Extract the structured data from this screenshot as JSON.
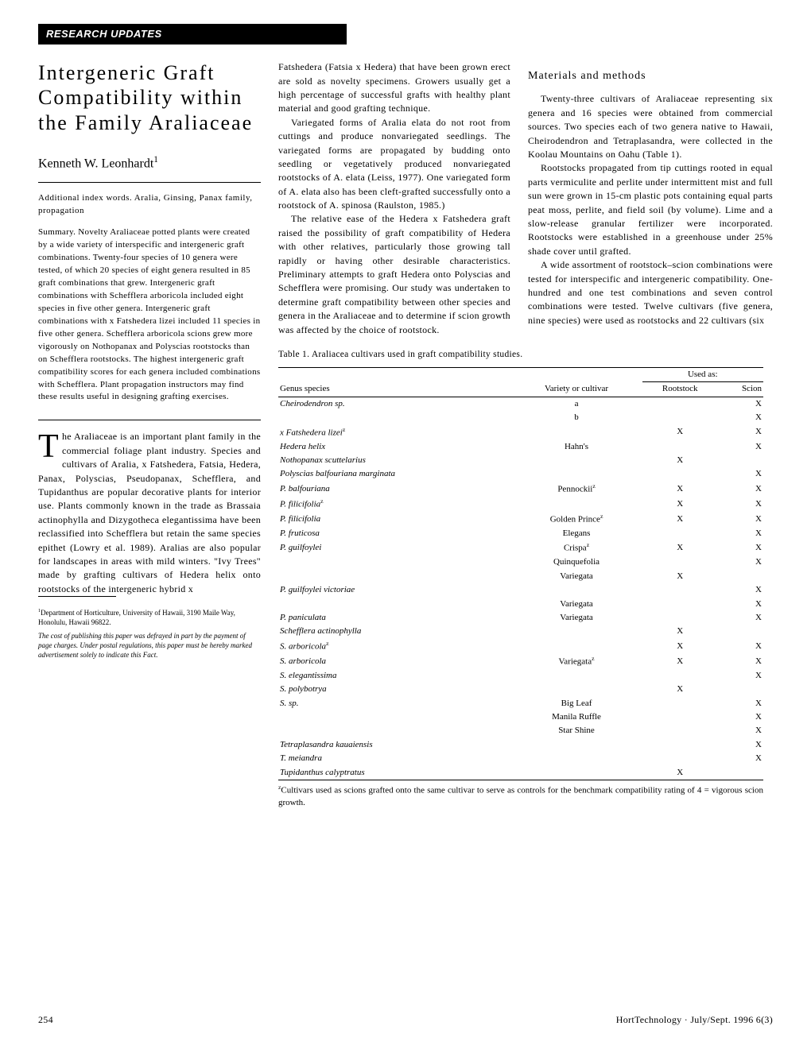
{
  "section_header": "RESEARCH UPDATES",
  "title": "Intergeneric Graft Compatibility within the Family Araliaceae",
  "author": "Kenneth W. Leonhardt",
  "author_sup": "1",
  "index_words_label": "Additional index words.",
  "index_words": "Aralia, Ginsing, Panax family, propagation",
  "summary_label": "Summary.",
  "summary": "Novelty Araliaceae potted plants were created by a wide variety of interspecific and intergeneric graft combinations. Twenty-four species of 10 genera were tested, of which 20 species of eight genera resulted in 85 graft combinations that grew. Intergeneric graft combinations with Schefflera arboricola included eight species in five other genera. Intergeneric graft combinations with x Fatshedera lizei included 11 species in five other genera. Schefflera arboricola scions grew more vigorously on Nothopanax and Polyscias rootstocks than on Schefflera rootstocks. The highest intergeneric graft compatibility scores for each genera included combinations with Schefflera. Plant propagation instructors may find these results useful in designing grafting exercises.",
  "intro_first_char": "T",
  "intro_first_para_rest": "he Araliaceae is an important plant family in the commercial foliage plant industry. Species and cultivars of Aralia, x Fatshedera, Fatsia, Hedera, Panax, Polyscias, Pseudopanax, Schefflera, and Tupidanthus are popular decorative plants for interior use. Plants commonly known in the trade as Brassaia actinophylla and Dizygotheca elegantissima have been reclassified into Schefflera but retain the same species epithet (Lowry et al. 1989). Aralias are also popular for landscapes in areas with mild winters. \"Ivy Trees\" made by grafting cultivars of Hedera helix onto rootstocks of the intergeneric hybrid x",
  "footnote_dept": "Department of Horticulture, University of Hawaii, 3190 Maile Way, Honolulu, Hawaii 96822.",
  "footnote_cost": "The cost of publishing this paper was defrayed in part by the payment of page charges. Under postal regulations, this paper must be hereby marked advertisement solely to indicate this Fact.",
  "para2": "Fatshedera (Fatsia x Hedera) that have been grown erect are sold as novelty specimens. Growers usually get a high percentage of successful grafts with healthy plant material and good grafting technique.",
  "para3": "Variegated forms of Aralia elata do not root from cuttings and produce nonvariegated seedlings. The variegated forms are propagated by budding onto seedling or vegetatively produced nonvariegated rootstocks of A. elata (Leiss, 1977). One variegated form of A. elata also has been cleft-grafted successfully onto a rootstock of A. spinosa (Raulston, 1985.)",
  "para4": "The relative ease of the Hedera x Fatshedera graft raised the possibility of graft compatibility of Hedera with other relatives, particularly those growing tall rapidly or having other desirable characteristics. Preliminary attempts to graft Hedera onto Polyscias and Schefflera were promising. Our study was undertaken to determine graft compatibility between other species and genera in the Araliaceae and to determine if scion growth was affected by the choice of rootstock.",
  "materials_heading": "Materials and methods",
  "para5": "Twenty-three cultivars of Araliaceae representing six genera and 16 species were obtained from commercial sources. Two species each of two genera native to Hawaii, Cheirodendron and Tetraplasandra, were collected in the Koolau Mountains on Oahu (Table 1).",
  "para6": "Rootstocks propagated from tip cuttings rooted in equal parts vermiculite and perlite under intermittent mist and full sun were grown in 15-cm plastic pots containing equal parts peat moss, perlite, and field soil (by volume). Lime and a slow-release granular fertilizer were incorporated. Rootstocks were established in a greenhouse under 25% shade cover until grafted.",
  "para7": "A wide assortment of rootstock–scion combinations were tested for interspecific and intergeneric compatibility. One-hundred and one test combinations and seven control combinations were tested. Twelve cultivars (five genera, nine species) were used as rootstocks and 22 cultivars (six",
  "table_caption": "Table 1. Araliacea cultivars used in graft compatibility studies.",
  "table_headers": {
    "genus": "Genus species",
    "variety": "Variety or cultivar",
    "used_as": "Used as:",
    "rootstock": "Rootstock",
    "scion": "Scion"
  },
  "table_rows": [
    {
      "genus": "Cheirodendron sp.",
      "variety": "a",
      "rootstock": "",
      "scion": "X"
    },
    {
      "genus": "",
      "variety": "b",
      "rootstock": "",
      "scion": "X"
    },
    {
      "genus": "x Fatshedera lizei",
      "sup": "z",
      "variety": "",
      "rootstock": "X",
      "scion": "X"
    },
    {
      "genus": "Hedera helix",
      "variety": "Hahn's",
      "rootstock": "",
      "scion": "X"
    },
    {
      "genus": "Nothopanax scuttelarius",
      "variety": "",
      "rootstock": "X",
      "scion": ""
    },
    {
      "genus": "Polyscias balfouriana marginata",
      "variety": "",
      "rootstock": "",
      "scion": "X"
    },
    {
      "genus": "P. balfouriana",
      "variety": "Pennockii",
      "vsup": "z",
      "rootstock": "X",
      "scion": "X"
    },
    {
      "genus": "P. filicifolia",
      "sup": "z",
      "variety": "",
      "rootstock": "X",
      "scion": "X"
    },
    {
      "genus": "P. filicifolia",
      "variety": "Golden Prince",
      "vsup": "z",
      "rootstock": "X",
      "scion": "X"
    },
    {
      "genus": "P. fruticosa",
      "variety": "Elegans",
      "rootstock": "",
      "scion": "X"
    },
    {
      "genus": "P. guilfoylei",
      "variety": "Crispa",
      "vsup": "z",
      "rootstock": "X",
      "scion": "X"
    },
    {
      "genus": "",
      "variety": "Quinquefolia",
      "rootstock": "",
      "scion": "X"
    },
    {
      "genus": "",
      "variety": "Variegata",
      "rootstock": "X",
      "scion": ""
    },
    {
      "genus": "P. guilfoylei victoriae",
      "variety": "",
      "rootstock": "",
      "scion": "X"
    },
    {
      "genus": "",
      "variety": "Variegata",
      "rootstock": "",
      "scion": "X"
    },
    {
      "genus": "P. paniculata",
      "variety": "Variegata",
      "rootstock": "",
      "scion": "X"
    },
    {
      "genus": "Schefflera actinophylla",
      "variety": "",
      "rootstock": "X",
      "scion": ""
    },
    {
      "genus": "S. arboricola",
      "sup": "z",
      "variety": "",
      "rootstock": "X",
      "scion": "X"
    },
    {
      "genus": "S. arboricola",
      "variety": "Variegata",
      "vsup": "z",
      "rootstock": "X",
      "scion": "X"
    },
    {
      "genus": "S. elegantissima",
      "variety": "",
      "rootstock": "",
      "scion": "X"
    },
    {
      "genus": "S. polybotrya",
      "variety": "",
      "rootstock": "X",
      "scion": ""
    },
    {
      "genus": "S. sp.",
      "variety": "Big Leaf",
      "rootstock": "",
      "scion": "X"
    },
    {
      "genus": "",
      "variety": "Manila Ruffle",
      "rootstock": "",
      "scion": "X"
    },
    {
      "genus": "",
      "variety": "Star Shine",
      "rootstock": "",
      "scion": "X"
    },
    {
      "genus": "Tetraplasandra kauaiensis",
      "variety": "",
      "rootstock": "",
      "scion": "X"
    },
    {
      "genus": "T. meiandra",
      "variety": "",
      "rootstock": "",
      "scion": "X"
    },
    {
      "genus": "Tupidanthus calyptratus",
      "variety": "",
      "rootstock": "X",
      "scion": ""
    }
  ],
  "table_footnote_sup": "z",
  "table_footnote": "Cultivars used as scions grafted onto the same cultivar to serve as controls for the benchmark compatibility rating of 4 = vigorous scion growth.",
  "page_number": "254",
  "journal_info": "HortTechnology · July/Sept. 1996 6(3)"
}
